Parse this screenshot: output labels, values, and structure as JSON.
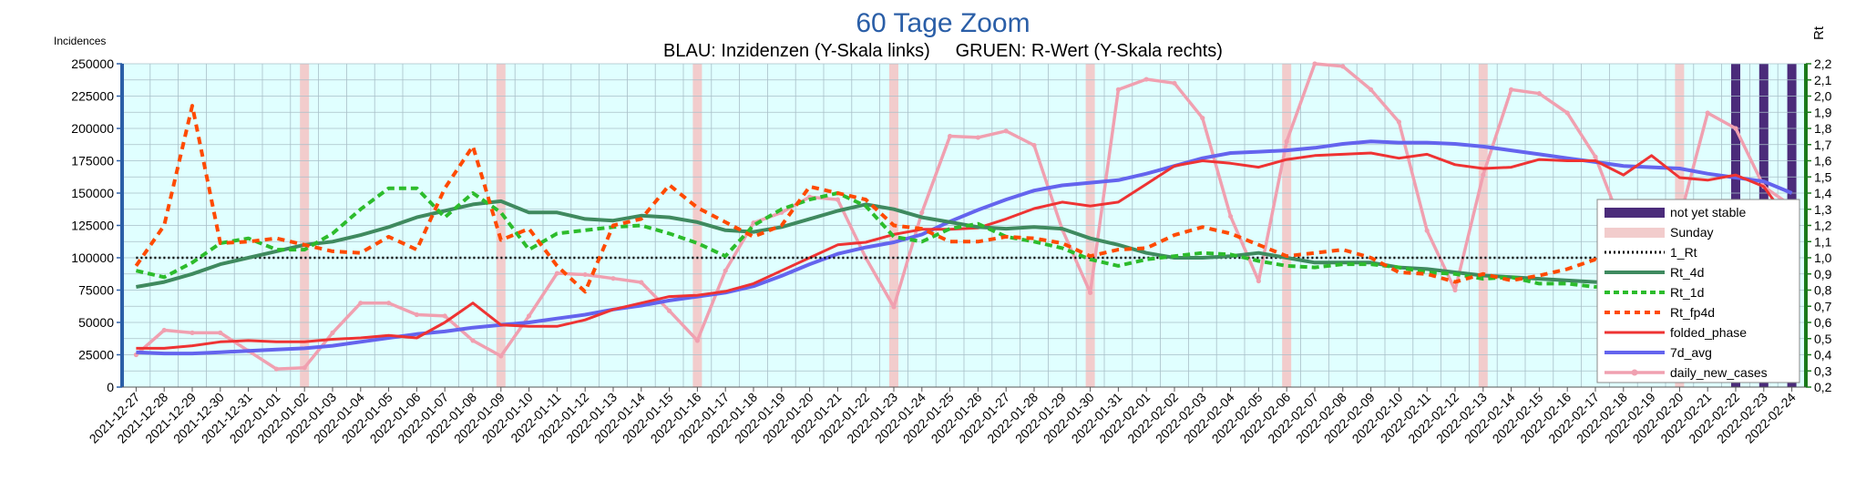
{
  "chart_data": {
    "type": "line",
    "title": "60 Tage Zoom",
    "subtitle": "BLAU: Inzidenzen (Y-Skala links)     GRUEN: R-Wert (Y-Skala rechts)",
    "ylabel_left": "Incidences",
    "ylabel_right": "Rt",
    "ylim_left": [
      0,
      250000
    ],
    "ylim_right": [
      0.2,
      2.2
    ],
    "yticks_left": [
      "0",
      "25000",
      "50000",
      "75000",
      "100000",
      "125000",
      "150000",
      "175000",
      "200000",
      "225000",
      "250000"
    ],
    "yticks_right": [
      "0,2",
      "0,3",
      "0,4",
      "0,5",
      "0,6",
      "0,7",
      "0,8",
      "0,9",
      "1,0",
      "1,1",
      "1,2",
      "1,3",
      "1,4",
      "1,5",
      "1,6",
      "1,7",
      "1,8",
      "1,9",
      "2,0",
      "2,1",
      "2,2"
    ],
    "grid": true,
    "legend_position": "right",
    "x": [
      "2021-12-27",
      "2021-12-28",
      "2021-12-29",
      "2021-12-30",
      "2021-12-31",
      "2022-01-01",
      "2022-01-02",
      "2022-01-03",
      "2022-01-04",
      "2022-01-05",
      "2022-01-06",
      "2022-01-07",
      "2022-01-08",
      "2022-01-09",
      "2022-01-10",
      "2022-01-11",
      "2022-01-12",
      "2022-01-13",
      "2022-01-14",
      "2022-01-15",
      "2022-01-16",
      "2022-01-17",
      "2022-01-18",
      "2022-01-19",
      "2022-01-20",
      "2022-01-21",
      "2022-01-22",
      "2022-01-23",
      "2022-01-24",
      "2022-01-25",
      "2022-01-26",
      "2022-01-27",
      "2022-01-28",
      "2022-01-29",
      "2022-01-30",
      "2022-01-31",
      "2022-02-01",
      "2022-02-02",
      "2022-02-03",
      "2022-02-04",
      "2022-02-05",
      "2022-02-06",
      "2022-02-07",
      "2022-02-08",
      "2022-02-09",
      "2022-02-10",
      "2022-02-11",
      "2022-02-12",
      "2022-02-13",
      "2022-02-14",
      "2022-02-15",
      "2022-02-16",
      "2022-02-17",
      "2022-02-18",
      "2022-02-19",
      "2022-02-20",
      "2022-02-21",
      "2022-02-22",
      "2022-02-23",
      "2022-02-24"
    ],
    "sundays": [
      "2022-01-02",
      "2022-01-09",
      "2022-01-16",
      "2022-01-23",
      "2022-01-30",
      "2022-02-06",
      "2022-02-13",
      "2022-02-20"
    ],
    "not_yet_stable": [
      "2022-02-22",
      "2022-02-23",
      "2022-02-24"
    ],
    "legend": [
      "not yet stable",
      "Sunday",
      "1_Rt",
      "Rt_4d",
      "Rt_1d",
      "Rt_fp4d",
      "folded_phase",
      "7d_avg",
      "daily_new_cases"
    ],
    "colors": {
      "plot_bg": "#e0ffff",
      "grid": "#a9bfc8",
      "not_yet_stable": "#4b2b7a",
      "sunday": "#f2cccc",
      "one_rt": "#000000",
      "rt_4d": "#3f8a5f",
      "rt_1d": "#2cbc2c",
      "rt_fp4d": "#ff4a00",
      "folded_phase": "#ee3333",
      "avg7d": "#6464ee",
      "daily_new_cases": "#f0a0b0",
      "axis_left": "#2a5ea7",
      "axis_right": "#1a7a1a"
    },
    "series": [
      {
        "name": "1_Rt",
        "axis": "right",
        "values": [
          1.0,
          1.0,
          1.0,
          1.0,
          1.0,
          1.0,
          1.0,
          1.0,
          1.0,
          1.0,
          1.0,
          1.0,
          1.0,
          1.0,
          1.0,
          1.0,
          1.0,
          1.0,
          1.0,
          1.0,
          1.0,
          1.0,
          1.0,
          1.0,
          1.0,
          1.0,
          1.0,
          1.0,
          1.0,
          1.0,
          1.0,
          1.0,
          1.0,
          1.0,
          1.0,
          1.0,
          1.0,
          1.0,
          1.0,
          1.0,
          1.0,
          1.0,
          1.0,
          1.0,
          1.0,
          1.0,
          1.0,
          1.0,
          1.0,
          1.0,
          1.0,
          1.0,
          1.0,
          1.0,
          1.0,
          1.0,
          1.0,
          1.0,
          1.0,
          1.0
        ]
      },
      {
        "name": "Rt_4d",
        "axis": "right",
        "values": [
          0.82,
          0.85,
          0.9,
          0.96,
          1.0,
          1.04,
          1.08,
          1.1,
          1.14,
          1.19,
          1.25,
          1.29,
          1.33,
          1.35,
          1.28,
          1.28,
          1.24,
          1.23,
          1.26,
          1.25,
          1.22,
          1.17,
          1.16,
          1.19,
          1.24,
          1.29,
          1.33,
          1.3,
          1.25,
          1.22,
          1.19,
          1.18,
          1.19,
          1.18,
          1.12,
          1.08,
          1.03,
          1.0,
          1.0,
          1.01,
          1.03,
          1.0,
          0.97,
          0.97,
          0.97,
          0.94,
          0.93,
          0.91,
          0.89,
          0.88,
          0.87,
          0.86,
          0.85,
          0.85,
          0.84,
          0.85,
          0.85,
          0.85,
          0.84,
          0.82
        ]
      },
      {
        "name": "Rt_1d",
        "axis": "right",
        "values": [
          0.92,
          0.88,
          0.97,
          1.09,
          1.12,
          1.05,
          1.05,
          1.15,
          1.3,
          1.43,
          1.43,
          1.25,
          1.4,
          1.28,
          1.05,
          1.15,
          1.17,
          1.19,
          1.2,
          1.15,
          1.09,
          1.01,
          1.2,
          1.3,
          1.36,
          1.4,
          1.32,
          1.13,
          1.1,
          1.18,
          1.21,
          1.13,
          1.1,
          1.06,
          0.99,
          0.95,
          0.99,
          1.01,
          1.03,
          1.02,
          0.98,
          0.95,
          0.94,
          0.96,
          0.96,
          0.94,
          0.91,
          0.9,
          0.87,
          0.88,
          0.84,
          0.84,
          0.82,
          0.84,
          0.8,
          0.86,
          0.82,
          0.83,
          0.82,
          0.79
        ]
      },
      {
        "name": "Rt_fp4d",
        "axis": "right",
        "values": [
          0.95,
          1.2,
          1.94,
          1.09,
          1.1,
          1.12,
          1.08,
          1.04,
          1.03,
          1.13,
          1.05,
          1.43,
          1.69,
          1.11,
          1.18,
          0.95,
          0.79,
          1.2,
          1.24,
          1.45,
          1.31,
          1.22,
          1.13,
          1.2,
          1.44,
          1.4,
          1.36,
          1.2,
          1.18,
          1.1,
          1.1,
          1.13,
          1.12,
          1.09,
          1.01,
          1.05,
          1.06,
          1.14,
          1.19,
          1.15,
          1.08,
          1.01,
          1.03,
          1.05,
          1.0,
          0.91,
          0.9,
          0.85,
          0.9,
          0.86,
          0.89,
          0.93,
          0.99,
          0.89,
          0.99,
          0.84,
          0.86,
          0.9,
          0.8,
          0.66
        ]
      }
    ],
    "series_left": [
      {
        "name": "folded_phase",
        "axis": "left",
        "values": [
          30000,
          30000,
          32000,
          35000,
          36000,
          35000,
          35000,
          37000,
          38000,
          40000,
          38000,
          50000,
          65000,
          48000,
          47000,
          47000,
          52000,
          60000,
          65000,
          70000,
          71000,
          74000,
          80000,
          90000,
          100000,
          110000,
          112000,
          118000,
          122000,
          122000,
          123000,
          130000,
          138000,
          143000,
          140000,
          143000,
          157000,
          171000,
          175000,
          173000,
          170000,
          176000,
          179000,
          180000,
          181000,
          177000,
          180000,
          172000,
          169000,
          170000,
          176000,
          175000,
          175000,
          164000,
          179000,
          162000,
          160000,
          164000,
          155000,
          125000
        ]
      },
      {
        "name": "7d_avg",
        "axis": "left",
        "values": [
          27000,
          26000,
          26000,
          27000,
          28000,
          29000,
          30000,
          32000,
          35000,
          38000,
          41000,
          43000,
          46000,
          48000,
          50000,
          53000,
          56000,
          60000,
          63000,
          67000,
          70000,
          73000,
          78000,
          86000,
          95000,
          103000,
          108000,
          112000,
          118000,
          128000,
          137000,
          145000,
          152000,
          156000,
          158000,
          160000,
          165000,
          171000,
          177000,
          181000,
          182000,
          183000,
          185000,
          188000,
          190000,
          189000,
          189000,
          188000,
          186000,
          183000,
          180000,
          177000,
          174000,
          171000,
          170000,
          169000,
          165000,
          162000,
          159000,
          150000
        ]
      },
      {
        "name": "daily_new_cases",
        "axis": "left",
        "values": [
          25000,
          44000,
          42000,
          42000,
          28000,
          14000,
          15000,
          42000,
          65000,
          65000,
          56000,
          55000,
          36000,
          24000,
          55000,
          88000,
          87000,
          84000,
          81000,
          59000,
          36000,
          90000,
          127000,
          135000,
          147000,
          145000,
          100000,
          62000,
          135000,
          194000,
          193000,
          198000,
          187000,
          122000,
          73000,
          230000,
          238000,
          235000,
          208000,
          132000,
          82000,
          190000,
          250000,
          248000,
          230000,
          205000,
          121000,
          75000,
          164000,
          230000,
          227000,
          212000,
          178000,
          122000,
          69000,
          130000,
          212000,
          200000,
          155000,
          140000
        ]
      }
    ]
  }
}
